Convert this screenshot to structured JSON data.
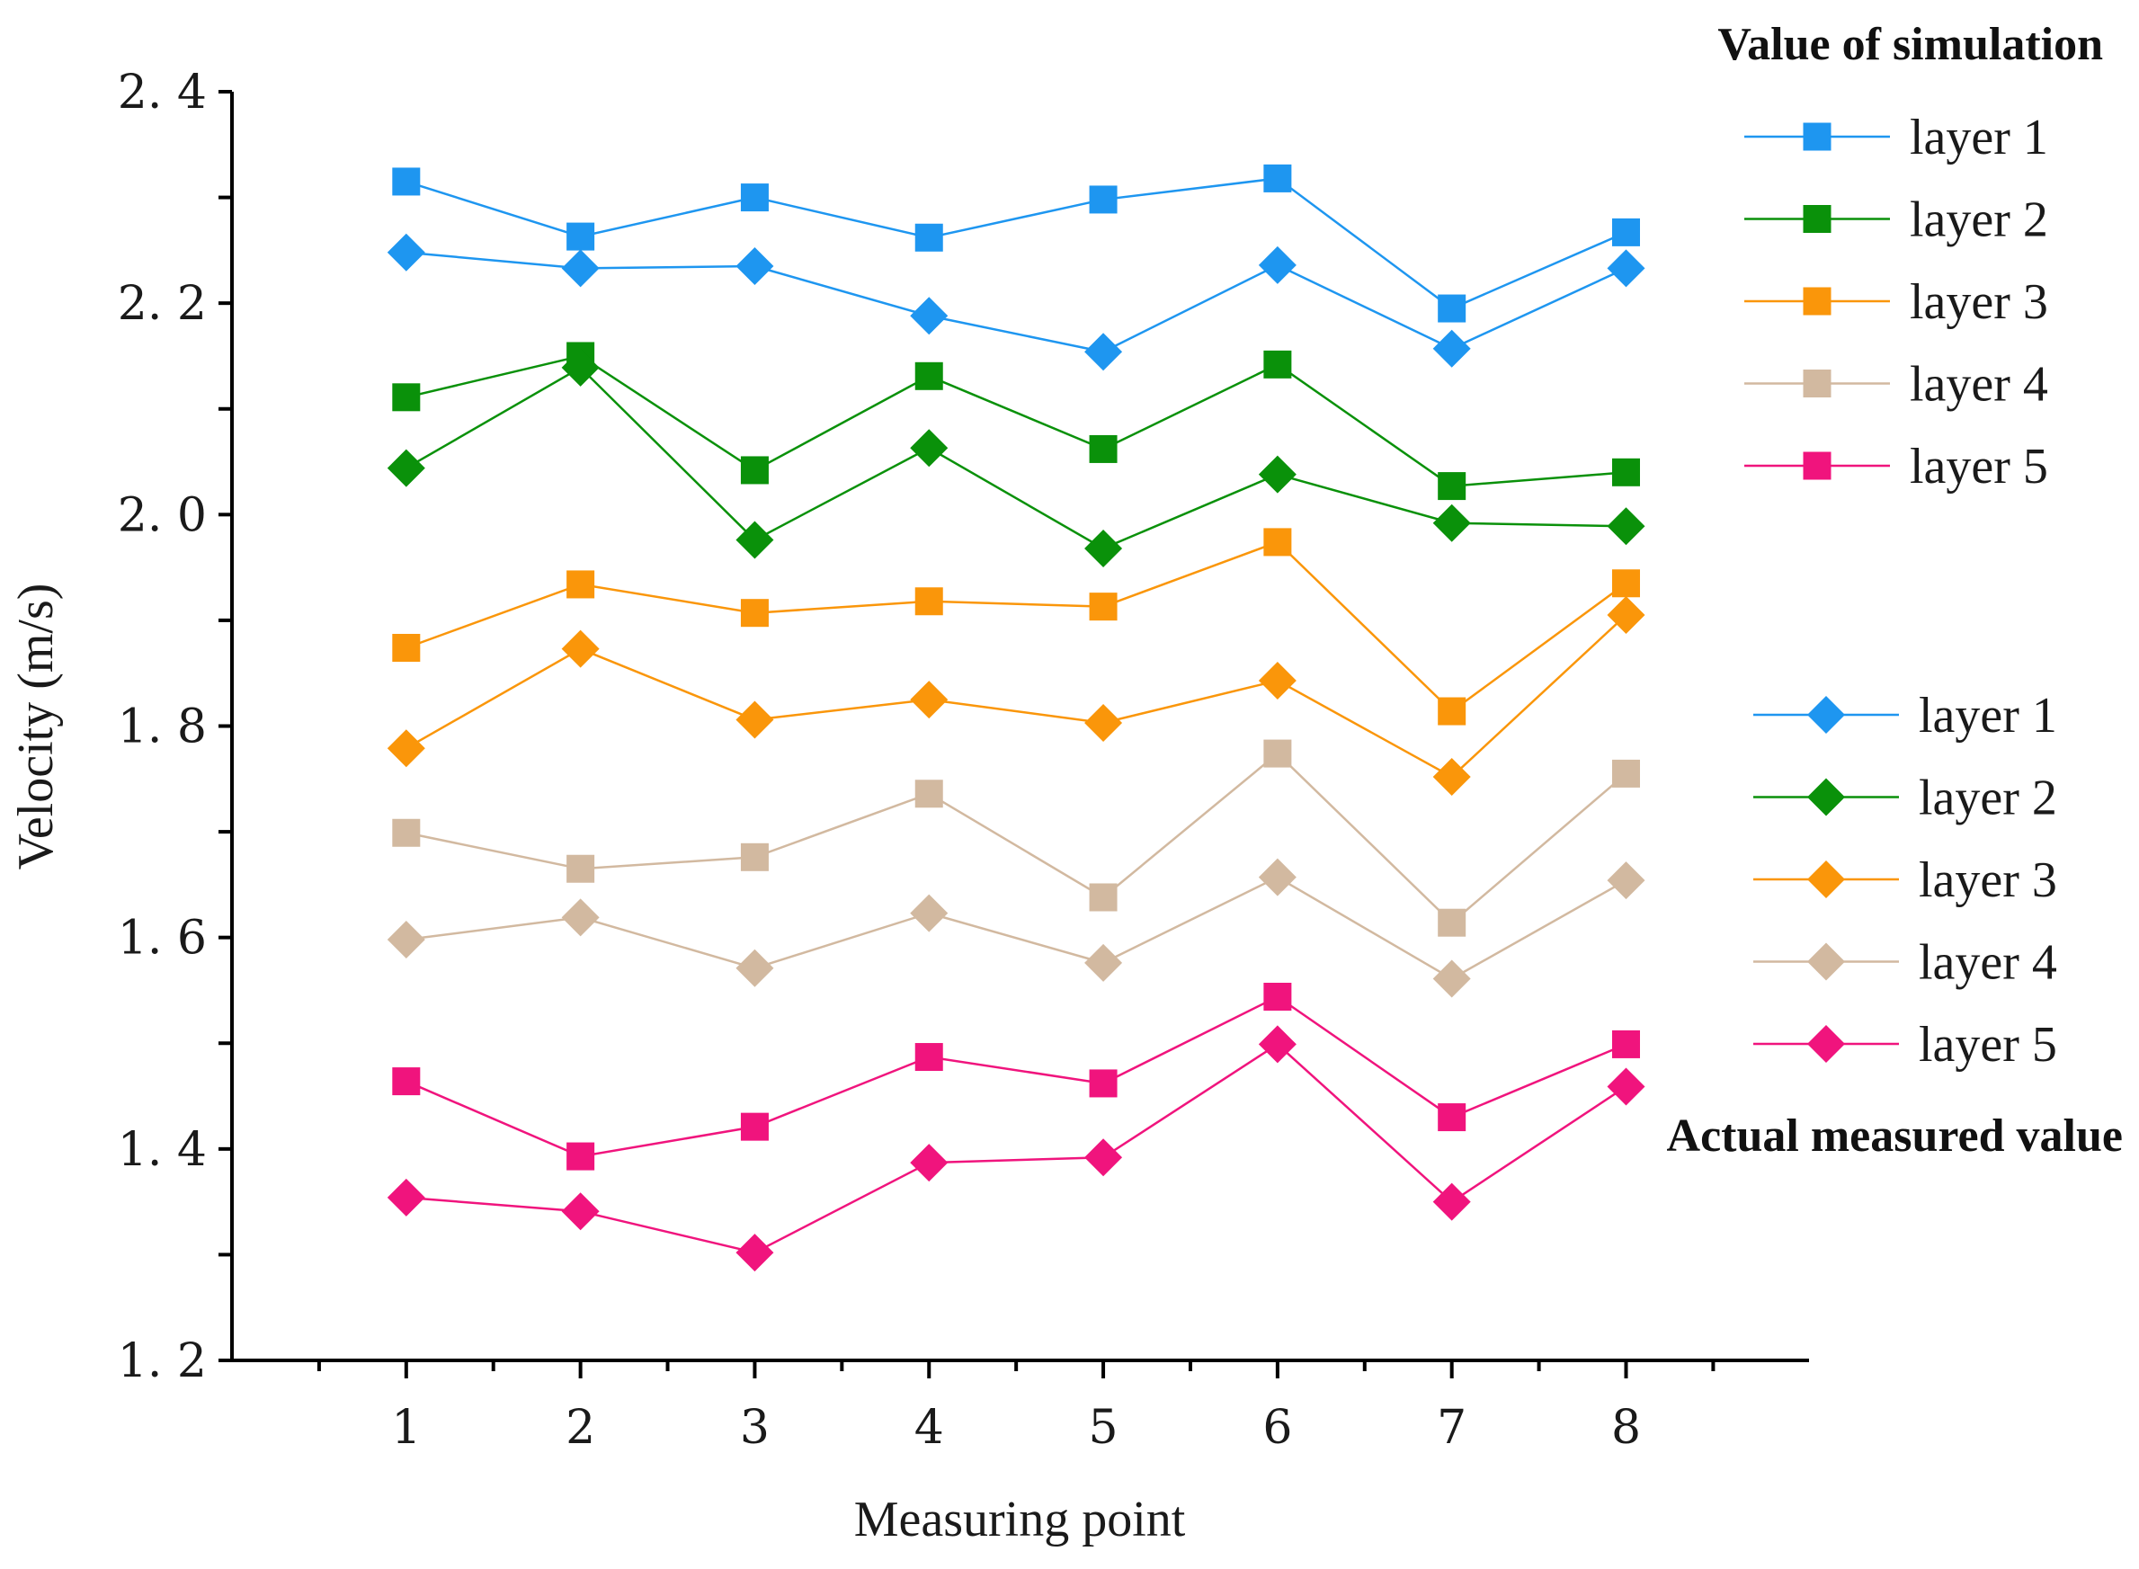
{
  "chart_data": {
    "type": "line",
    "xlabel": "Measuring point",
    "ylabel": "Velocity (m/s)",
    "x": [
      1,
      2,
      3,
      4,
      5,
      6,
      7,
      8
    ],
    "x_tick_labels": [
      "1",
      "2",
      "3",
      "4",
      "5",
      "6",
      "7",
      "8"
    ],
    "y_tick_labels": [
      "1.2",
      "1.4",
      "1.6",
      "1.8",
      "2.0",
      "2.2",
      "2.4"
    ],
    "xlim": [
      0,
      9.05
    ],
    "ylim": [
      1.2,
      2.4
    ],
    "legend_groups": [
      {
        "title": "Value of simulation",
        "marker": "square",
        "placement": "top-right"
      },
      {
        "title": "Actual measured value",
        "marker": "diamond",
        "placement": "middle-right"
      }
    ],
    "series": [
      {
        "name": "layer 1",
        "group": "Value of simulation",
        "marker": "square",
        "color": "#1e96f0",
        "values": [
          2.315,
          2.263,
          2.3,
          2.262,
          2.298,
          2.318,
          2.195,
          2.267
        ]
      },
      {
        "name": "layer 2",
        "group": "Value of simulation",
        "marker": "square",
        "color": "#0a910a",
        "values": [
          2.111,
          2.15,
          2.042,
          2.131,
          2.062,
          2.142,
          2.027,
          2.04
        ]
      },
      {
        "name": "layer 3",
        "group": "Value of simulation",
        "marker": "square",
        "color": "#fa960a",
        "values": [
          1.874,
          1.934,
          1.907,
          1.918,
          1.913,
          1.974,
          1.814,
          1.935
        ]
      },
      {
        "name": "layer 4",
        "group": "Value of simulation",
        "marker": "square",
        "color": "#d2b9a0",
        "values": [
          1.699,
          1.665,
          1.676,
          1.736,
          1.638,
          1.774,
          1.614,
          1.755
        ]
      },
      {
        "name": "layer 5",
        "group": "Value of simulation",
        "marker": "square",
        "color": "#f0147d",
        "values": [
          1.464,
          1.393,
          1.421,
          1.487,
          1.462,
          1.544,
          1.43,
          1.499
        ]
      },
      {
        "name": "layer 1",
        "group": "Actual measured value",
        "marker": "diamond",
        "color": "#1e96f0",
        "values": [
          2.248,
          2.233,
          2.235,
          2.188,
          2.154,
          2.236,
          2.157,
          2.233
        ]
      },
      {
        "name": "layer 2",
        "group": "Actual measured value",
        "marker": "diamond",
        "color": "#0a910a",
        "values": [
          2.044,
          2.139,
          1.976,
          2.063,
          1.968,
          2.038,
          1.992,
          1.989
        ]
      },
      {
        "name": "layer 3",
        "group": "Actual measured value",
        "marker": "diamond",
        "color": "#fa960a",
        "values": [
          1.779,
          1.873,
          1.806,
          1.825,
          1.803,
          1.843,
          1.752,
          1.905
        ]
      },
      {
        "name": "layer 4",
        "group": "Actual measured value",
        "marker": "diamond",
        "color": "#d2b9a0",
        "values": [
          1.598,
          1.619,
          1.571,
          1.623,
          1.576,
          1.657,
          1.561,
          1.654
        ]
      },
      {
        "name": "layer 5",
        "group": "Actual measured value",
        "marker": "diamond",
        "color": "#f0147d",
        "values": [
          1.354,
          1.341,
          1.302,
          1.387,
          1.392,
          1.499,
          1.35,
          1.459
        ]
      }
    ]
  }
}
